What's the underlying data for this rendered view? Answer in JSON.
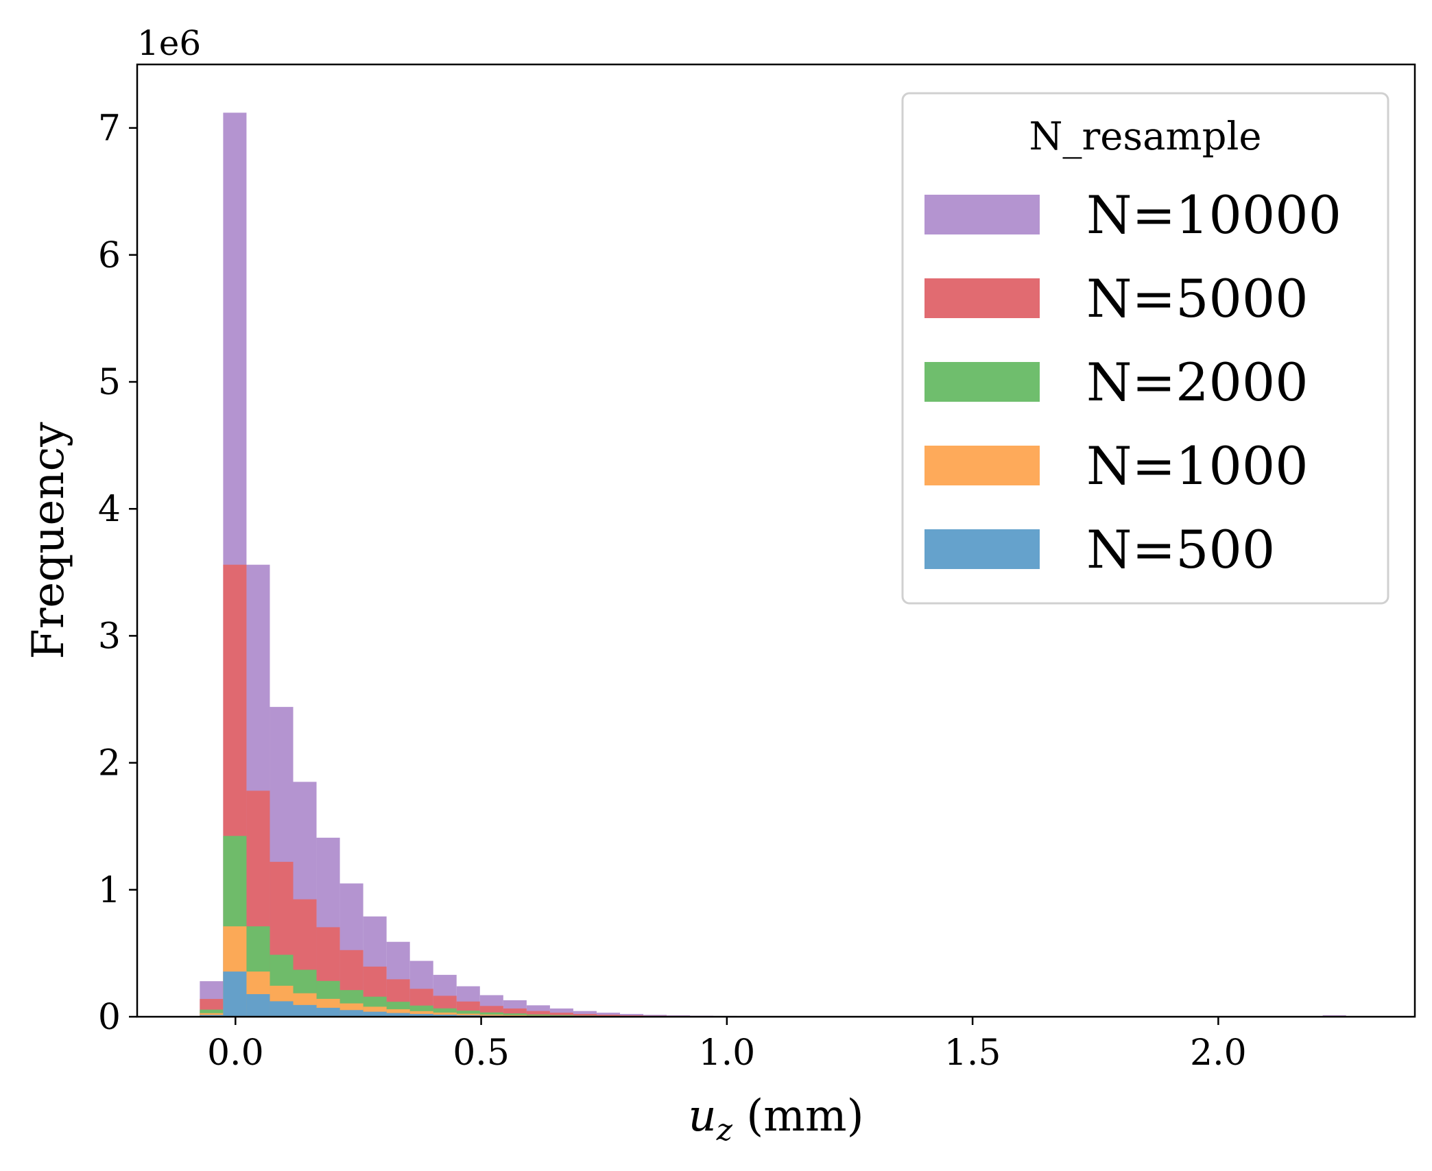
{
  "chart_data": {
    "type": "bar",
    "subtype": "overlaid-histogram",
    "title": "",
    "xlabel_var": "u",
    "xlabel_sub": "z",
    "xlabel_unit": " (mm)",
    "ylabel": "Frequency",
    "y_offset_text": "1e6",
    "x_ticks": [
      0.0,
      0.5,
      1.0,
      1.5,
      2.0
    ],
    "x_tick_labels": [
      "0.0",
      "0.5",
      "1.0",
      "1.5",
      "2.0"
    ],
    "y_ticks": [
      0,
      1,
      2,
      3,
      4,
      5,
      6,
      7
    ],
    "y_tick_labels": [
      "0",
      "1",
      "2",
      "3",
      "4",
      "5",
      "6",
      "7"
    ],
    "xlim": [
      -0.2,
      2.4
    ],
    "ylim": [
      0,
      7.5
    ],
    "y_unit_multiplier": 1000000,
    "grid": false,
    "legend": {
      "title": "N_resample",
      "placement": "top-right"
    },
    "bin_width": 0.0475,
    "bin_starts": [
      -0.0725,
      -0.025,
      0.0225,
      0.07,
      0.1175,
      0.165,
      0.2125,
      0.26,
      0.3075,
      0.355,
      0.4025,
      0.45,
      0.4975,
      0.545,
      0.5925,
      0.64,
      0.6875,
      0.735,
      0.7825,
      0.83,
      0.8775,
      0.925,
      0.9725,
      1.02,
      1.0675,
      2.2125
    ],
    "series": [
      {
        "name": "N=10000",
        "color": "#b392cf",
        "values": [
          0.28,
          7.12,
          3.56,
          2.44,
          1.85,
          1.41,
          1.05,
          0.79,
          0.59,
          0.44,
          0.33,
          0.24,
          0.17,
          0.13,
          0.09,
          0.065,
          0.045,
          0.032,
          0.022,
          0.015,
          0.011,
          0.008,
          0.006,
          0.004,
          0.003,
          0.012
        ]
      },
      {
        "name": "N=5000",
        "color": "#e0686e",
        "values": [
          0.14,
          3.56,
          1.78,
          1.22,
          0.925,
          0.705,
          0.525,
          0.395,
          0.295,
          0.22,
          0.165,
          0.12,
          0.085,
          0.065,
          0.045,
          0.032,
          0.022,
          0.016,
          0.011,
          0.008,
          0.006,
          0.004,
          0.003,
          0.002,
          0.0015,
          0.006
        ]
      },
      {
        "name": "N=2000",
        "color": "#6cbd6a",
        "values": [
          0.056,
          1.424,
          0.712,
          0.488,
          0.37,
          0.282,
          0.21,
          0.158,
          0.118,
          0.088,
          0.066,
          0.048,
          0.034,
          0.026,
          0.018,
          0.013,
          0.009,
          0.0064,
          0.0044,
          0.003,
          0.0022,
          0.0016,
          0.0012,
          0.0008,
          0.0006,
          0.0024
        ]
      },
      {
        "name": "N=1000",
        "color": "#fea857",
        "values": [
          0.028,
          0.712,
          0.356,
          0.244,
          0.185,
          0.141,
          0.105,
          0.079,
          0.059,
          0.044,
          0.033,
          0.024,
          0.017,
          0.013,
          0.009,
          0.0065,
          0.0045,
          0.0032,
          0.0022,
          0.0015,
          0.0011,
          0.0008,
          0.0006,
          0.0004,
          0.0003,
          0.0012
        ]
      },
      {
        "name": "N=500",
        "color": "#62a0cb",
        "values": [
          0.014,
          0.356,
          0.178,
          0.122,
          0.0925,
          0.0705,
          0.0525,
          0.0395,
          0.0295,
          0.022,
          0.0165,
          0.012,
          0.0085,
          0.0065,
          0.0045,
          0.0032,
          0.0022,
          0.0016,
          0.0011,
          0.0008,
          0.0006,
          0.0004,
          0.0003,
          0.0002,
          0.00015,
          0.0006
        ]
      }
    ]
  }
}
